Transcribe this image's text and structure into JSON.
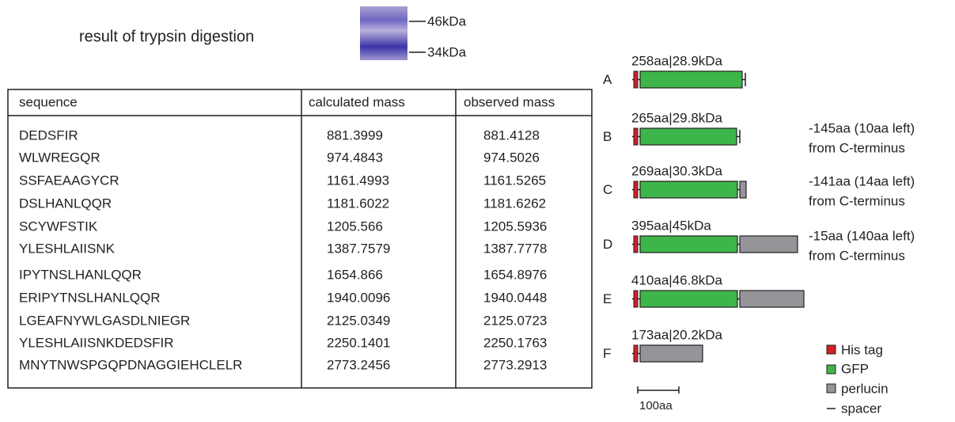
{
  "title": "result of trypsin digestion",
  "gel": {
    "markers": [
      "46kDa",
      "34kDa"
    ]
  },
  "table": {
    "header": [
      "sequence",
      "calculated mass",
      "observed mass"
    ],
    "rows": [
      [
        "DEDSFIR",
        "881.3999",
        "881.4128"
      ],
      [
        "WLWREGQR",
        "974.4843",
        "974.5026"
      ],
      [
        "SSFAEAAGYCR",
        "1161.4993",
        "1161.5265"
      ],
      [
        "DSLHANLQQR",
        "1181.6022",
        "1181.6262"
      ],
      [
        "SCYWFSTIK",
        "1205.566",
        "1205.5936"
      ],
      [
        "YLESHLAIISNK",
        "1387.7579",
        "1387.7778"
      ],
      [
        "IPYTNSLHANLQQR",
        "1654.866",
        "1654.8976"
      ],
      [
        "ERIPYTNSLHANLQQR",
        "1940.0096",
        "1940.0448"
      ],
      [
        "LGEAFNYWLGASDLNIEGR",
        "2125.0349",
        "2125.0723"
      ],
      [
        "YLESHLAIISNKDEDSFIR",
        "2250.1401",
        "2250.1763"
      ],
      [
        "MNYTNWSPGQPDNAGGIEHCLELR",
        "2773.2456",
        "2773.2913"
      ]
    ]
  },
  "constructs": [
    {
      "letter": "A",
      "label": "258aa|28.9kDa"
    },
    {
      "letter": "B",
      "label": "265aa|29.8kDa",
      "note": [
        "-145aa (10aa left)",
        "from C-terminus"
      ]
    },
    {
      "letter": "C",
      "label": "269aa|30.3kDa",
      "note": [
        "-141aa (14aa left)",
        "from C-terminus"
      ]
    },
    {
      "letter": "D",
      "label": "395aa|45kDa",
      "note": [
        "-15aa (140aa left)",
        "from C-terminus"
      ]
    },
    {
      "letter": "E",
      "label": "410aa|46.8kDa"
    },
    {
      "letter": "F",
      "label": "173aa|20.2kDa"
    }
  ],
  "legend": [
    "His tag",
    "GFP",
    "perlucin",
    "spacer"
  ],
  "scale_bar": "100aa"
}
